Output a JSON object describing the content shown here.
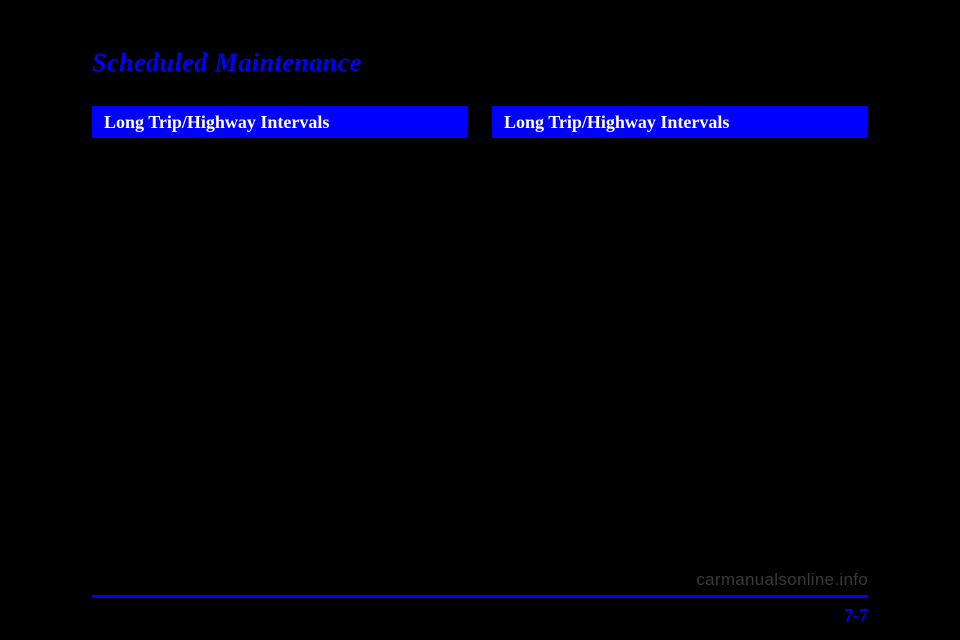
{
  "heading": "Scheduled Maintenance",
  "left_column": {
    "header": "Long Trip/Highway Intervals"
  },
  "right_column": {
    "header": "Long Trip/Highway Intervals"
  },
  "page_number": "7-7",
  "watermark": "carmanualsonline.info"
}
